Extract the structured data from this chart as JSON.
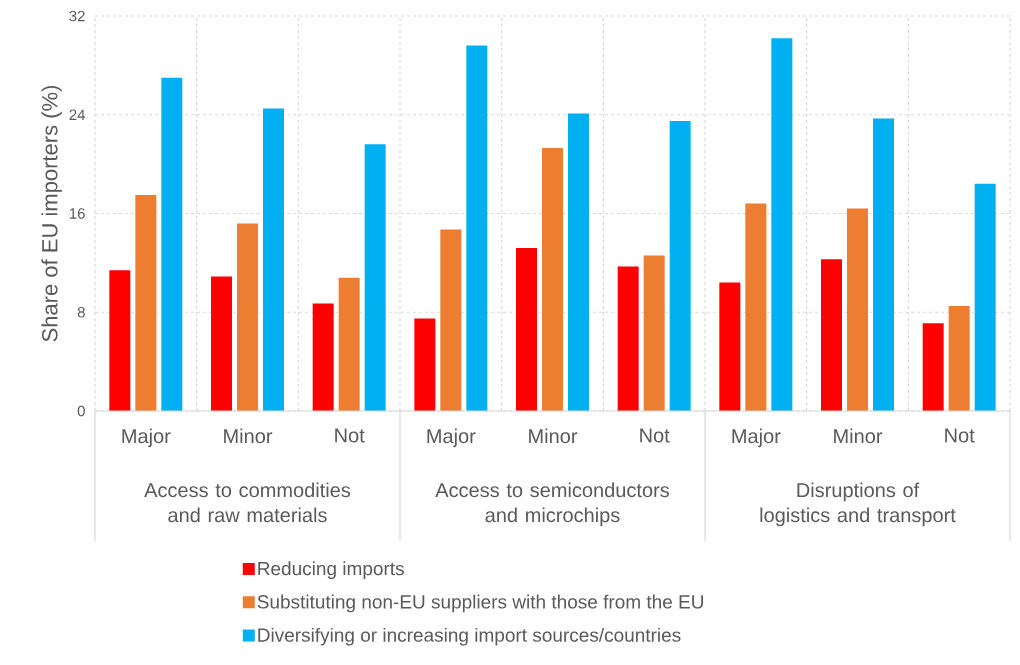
{
  "chart_data": {
    "type": "bar",
    "ylabel": "Share of EU importers (%)",
    "categories": [
      "Major",
      "Minor",
      "Not",
      "Major",
      "Minor",
      "Not",
      "Major",
      "Minor",
      "Not"
    ],
    "annotations": [
      "Access to commodities and raw materials",
      "Access to semiconductors and microchips",
      "Disruptions of logistics and transport"
    ],
    "series": [
      {
        "name": "Reducing imports",
        "color": "#ff0000",
        "values": [
          11.4,
          10.9,
          8.7,
          7.5,
          13.2,
          11.7,
          10.4,
          12.3,
          7.1
        ]
      },
      {
        "name": "Substituting non-EU suppliers with those from the EU",
        "color": "#ed7d31",
        "values": [
          17.5,
          15.2,
          10.8,
          14.7,
          21.3,
          12.6,
          16.8,
          16.4,
          8.5
        ]
      },
      {
        "name": "Diversifying or increasing import sources/countries",
        "color": "#00b0f0",
        "values": [
          27.0,
          24.5,
          21.6,
          29.6,
          24.1,
          23.5,
          30.2,
          23.7,
          18.4
        ]
      }
    ],
    "ylim": [
      0,
      32
    ],
    "yticks": [
      0,
      8,
      16,
      24,
      32
    ],
    "grid": true,
    "legend": "bottom"
  }
}
